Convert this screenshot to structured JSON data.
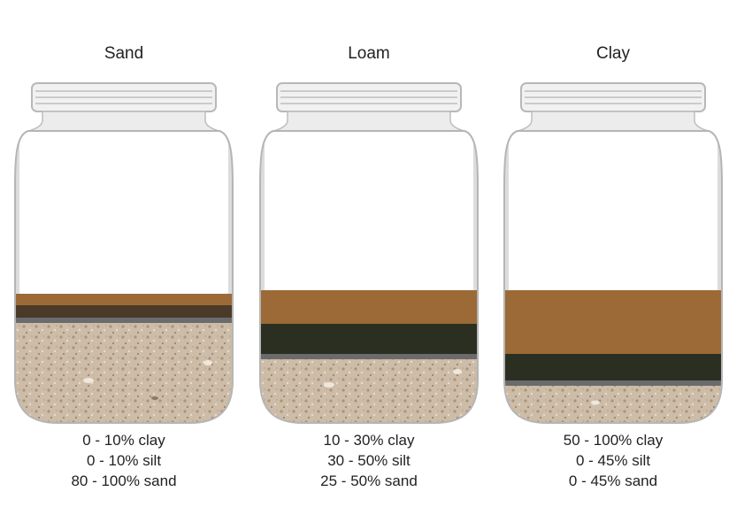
{
  "colors": {
    "clay": "#9b6a36",
    "silt_sand": "#4a3a2a",
    "silt_loam": "#2a2f22",
    "divider": "#6b6b6b",
    "sand_fill": "#cbbba6"
  },
  "jars": [
    {
      "title": "Sand",
      "composition": [
        "0 - 10% clay",
        "0 - 10% silt",
        "80 - 100% sand"
      ],
      "layer_colors": [
        "clay",
        "silt_sand",
        "divider"
      ]
    },
    {
      "title": "Loam",
      "composition": [
        "10 - 30% clay",
        "30 - 50% silt",
        "25 - 50% sand"
      ],
      "layer_colors": [
        "clay",
        "silt_loam",
        "divider"
      ]
    },
    {
      "title": "Clay",
      "composition": [
        "50 - 100% clay",
        "0 - 45% silt",
        "0 - 45% sand"
      ],
      "layer_colors": [
        "clay",
        "silt_loam",
        "divider"
      ]
    }
  ]
}
